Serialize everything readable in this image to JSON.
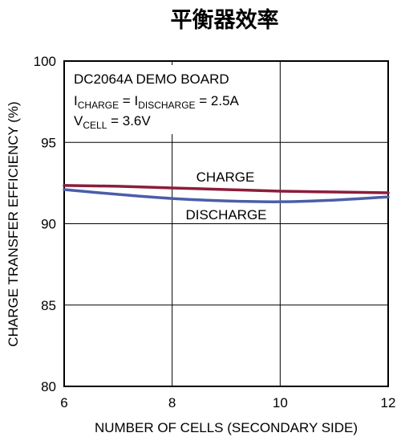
{
  "chart_data": {
    "type": "line",
    "title": "平衡器效率",
    "xlabel": "NUMBER OF CELLS (SECONDARY SIDE)",
    "ylabel": "CHARGE TRANSFER EFFICIENCY (%)",
    "xlim": [
      6,
      12
    ],
    "ylim": [
      80,
      100
    ],
    "x_ticks": [
      6,
      8,
      10,
      12
    ],
    "y_ticks": [
      80,
      85,
      90,
      95,
      100
    ],
    "x_tick_labels": [
      "6",
      "8",
      "10",
      "12"
    ],
    "y_tick_labels": [
      "80",
      "85",
      "90",
      "95",
      "100"
    ],
    "grid": true,
    "annotation": {
      "line1": "DC2064A DEMO BOARD",
      "line2_i1": "I",
      "line2_sub1": "CHARGE",
      "line2_eq1": " = I",
      "line2_sub2": "DISCHARGE",
      "line2_rest": " = 2.5A",
      "line3_v": "V",
      "line3_sub": "CELL",
      "line3_rest": " = 3.6V"
    },
    "series": [
      {
        "name": "CHARGE",
        "color": "#8b1d3b",
        "x": [
          6,
          7,
          8,
          9,
          10,
          11,
          12
        ],
        "y": [
          92.35,
          92.3,
          92.2,
          92.1,
          92.0,
          91.95,
          91.9
        ]
      },
      {
        "name": "DISCHARGE",
        "color": "#4a5ea8",
        "x": [
          6,
          7,
          8,
          9,
          10,
          11,
          12
        ],
        "y": [
          92.1,
          91.8,
          91.55,
          91.4,
          91.35,
          91.45,
          91.65
        ]
      }
    ]
  }
}
